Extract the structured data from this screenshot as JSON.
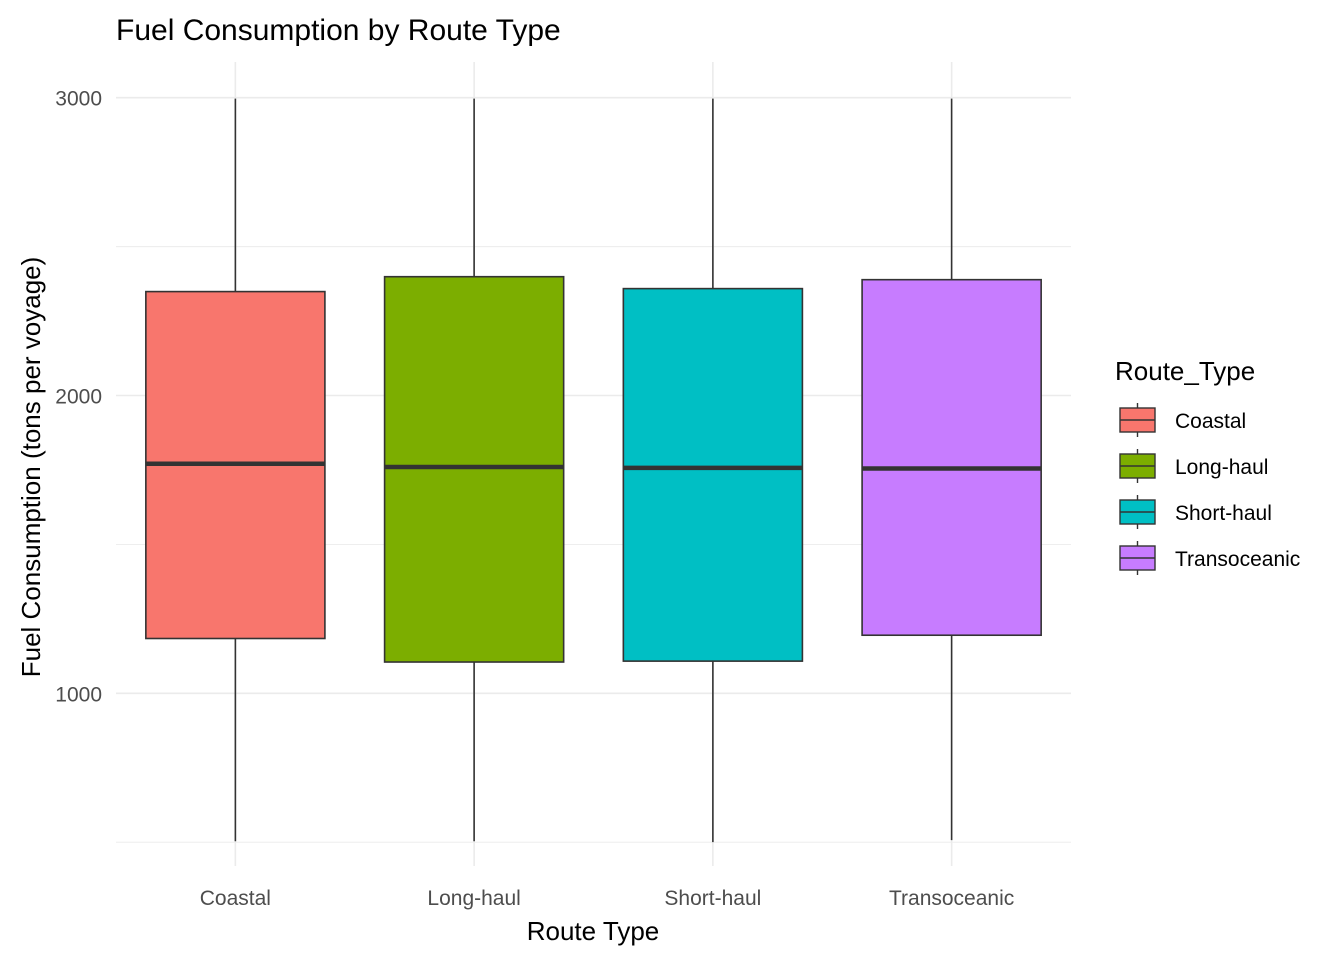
{
  "chart_data": {
    "type": "boxplot",
    "title": "Fuel Consumption by Route Type",
    "xlabel": "Route Type",
    "ylabel": "Fuel Consumption (tons per voyage)",
    "ylim": [
      420,
      3120
    ],
    "yticks": [
      1000,
      2000,
      3000
    ],
    "yticks_labels": [
      "1000",
      "2000",
      "3000"
    ],
    "grid": true,
    "legend": {
      "title": "Route_Type",
      "placement": "right"
    },
    "categories": [
      "Coastal",
      "Long-haul",
      "Short-haul",
      "Transoceanic"
    ],
    "colors": [
      "#F8766D",
      "#7CAE00",
      "#00BFC4",
      "#C77CFF"
    ],
    "boxes": [
      {
        "name": "Coastal",
        "min": 503,
        "q1": 1184,
        "median": 1771,
        "q3": 2349,
        "max": 2997
      },
      {
        "name": "Long-haul",
        "min": 503,
        "q1": 1105,
        "median": 1760,
        "q3": 2399,
        "max": 2997
      },
      {
        "name": "Short-haul",
        "min": 500,
        "q1": 1108,
        "median": 1757,
        "q3": 2359,
        "max": 2997
      },
      {
        "name": "Transoceanic",
        "min": 507,
        "q1": 1195,
        "median": 1755,
        "q3": 2389,
        "max": 2997
      }
    ]
  }
}
